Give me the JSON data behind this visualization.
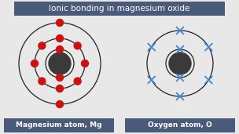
{
  "title": "Ionic bonding in magnesium oxide",
  "title_bg": "#4a5a7a",
  "title_color": "#ffffff",
  "title_fontsize": 7.5,
  "bg_color": "#e8e8e8",
  "label_bg": "#4a5a7a",
  "label_color": "#ffffff",
  "label_fontsize": 6.5,
  "mg_label": "Magnesium atom, Mg",
  "o_label": "Oxygen atom, O",
  "nucleus_color": "#3a3a3a",
  "electron_color": "#cc1111",
  "cross_color": "#4488cc",
  "line_color": "#222222",
  "line_width": 0.9
}
